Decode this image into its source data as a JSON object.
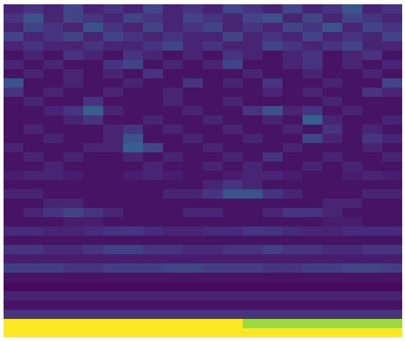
{
  "chart_data": {
    "type": "heatmap",
    "tick_labels": false,
    "zlim": [
      0,
      1
    ],
    "cells": [
      [
        0.1,
        0.15,
        0.1,
        0.2,
        0.1,
        0.15,
        0.1,
        0.2,
        0.1,
        0.15,
        0.1,
        0.2,
        0.15,
        0.1,
        0.2,
        0.1,
        0.15,
        0.25,
        0.1,
        0.15
      ],
      [
        0.15,
        0.25,
        0.1,
        0.2,
        0.15,
        0.1,
        0.2,
        0.15,
        0.1,
        0.2,
        0.15,
        0.1,
        0.2,
        0.25,
        0.1,
        0.2,
        0.1,
        0.2,
        0.15,
        0.1
      ],
      [
        0.1,
        0.2,
        0.15,
        0.1,
        0.25,
        0.15,
        0.1,
        0.2,
        0.1,
        0.15,
        0.2,
        0.1,
        0.15,
        0.1,
        0.2,
        0.15,
        0.25,
        0.1,
        0.2,
        0.15
      ],
      [
        0.2,
        0.1,
        0.15,
        0.2,
        0.1,
        0.2,
        0.15,
        0.1,
        0.15,
        0.1,
        0.1,
        0.2,
        0.1,
        0.15,
        0.1,
        0.2,
        0.1,
        0.15,
        0.1,
        0.2
      ],
      [
        0.1,
        0.15,
        0.1,
        0.1,
        0.15,
        0.1,
        0.1,
        0.15,
        0.2,
        0.1,
        0.15,
        0.1,
        0.1,
        0.2,
        0.15,
        0.1,
        0.15,
        0.2,
        0.1,
        0.1
      ],
      [
        0.05,
        0.1,
        0.05,
        0.15,
        0.1,
        0.05,
        0.15,
        0.1,
        0.05,
        0.1,
        0.05,
        0.15,
        0.1,
        0.05,
        0.1,
        0.15,
        0.05,
        0.1,
        0.15,
        0.05
      ],
      [
        0.1,
        0.05,
        0.1,
        0.05,
        0.05,
        0.15,
        0.2,
        0.05,
        0.1,
        0.05,
        0.1,
        0.2,
        0.05,
        0.05,
        0.1,
        0.15,
        0.05,
        0.1,
        0.05,
        0.1
      ],
      [
        0.05,
        0.1,
        0.05,
        0.1,
        0.05,
        0.1,
        0.05,
        0.15,
        0.05,
        0.05,
        0.05,
        0.05,
        0.1,
        0.05,
        0.05,
        0.1,
        0.05,
        0.05,
        0.1,
        0.05
      ],
      [
        0.25,
        0.05,
        0.05,
        0.1,
        0.05,
        0.05,
        0.1,
        0.05,
        0.05,
        0.15,
        0.05,
        0.1,
        0.05,
        0.15,
        0.05,
        0.05,
        0.1,
        0.05,
        0.05,
        0.2
      ],
      [
        0.15,
        0.05,
        0.1,
        0.05,
        0.05,
        0.1,
        0.05,
        0.05,
        0.1,
        0.05,
        0.05,
        0.05,
        0.05,
        0.1,
        0.05,
        0.1,
        0.05,
        0.05,
        0.15,
        0.1
      ],
      [
        0.05,
        0.1,
        0.05,
        0.05,
        0.15,
        0.05,
        0.05,
        0.05,
        0.1,
        0.05,
        0.05,
        0.1,
        0.05,
        0.05,
        0.05,
        0.05,
        0.1,
        0.05,
        0.05,
        0.05
      ],
      [
        0.05,
        0.05,
        0.1,
        0.15,
        0.3,
        0.1,
        0.05,
        0.05,
        0.05,
        0.1,
        0.05,
        0.05,
        0.15,
        0.25,
        0.1,
        0.15,
        0.05,
        0.1,
        0.05,
        0.05
      ],
      [
        0.05,
        0.05,
        0.05,
        0.1,
        0.15,
        0.05,
        0.05,
        0.1,
        0.05,
        0.05,
        0.1,
        0.05,
        0.05,
        0.1,
        0.05,
        0.3,
        0.1,
        0.05,
        0.05,
        0.1
      ],
      [
        0.05,
        0.1,
        0.05,
        0.05,
        0.05,
        0.1,
        0.15,
        0.05,
        0.1,
        0.05,
        0.05,
        0.1,
        0.05,
        0.05,
        0.1,
        0.05,
        0.15,
        0.05,
        0.1,
        0.05
      ],
      [
        0.05,
        0.05,
        0.1,
        0.05,
        0.05,
        0.1,
        0.25,
        0.05,
        0.05,
        0.1,
        0.05,
        0.05,
        0.1,
        0.05,
        0.05,
        0.2,
        0.1,
        0.05,
        0.15,
        0.1
      ],
      [
        0.1,
        0.05,
        0.05,
        0.05,
        0.1,
        0.1,
        0.3,
        0.2,
        0.05,
        0.05,
        0.1,
        0.05,
        0.05,
        0.05,
        0.1,
        0.05,
        0.05,
        0.05,
        0.1,
        0.05
      ],
      [
        0.05,
        0.1,
        0.05,
        0.1,
        0.05,
        0.05,
        0.1,
        0.05,
        0.1,
        0.05,
        0.05,
        0.1,
        0.05,
        0.15,
        0.05,
        0.05,
        0.1,
        0.05,
        0.05,
        0.1
      ],
      [
        0.05,
        0.05,
        0.1,
        0.05,
        0.05,
        0.05,
        0.05,
        0.1,
        0.05,
        0.05,
        0.1,
        0.05,
        0.1,
        0.05,
        0.05,
        0.1,
        0.05,
        0.1,
        0.05,
        0.05
      ],
      [
        0.08,
        0.1,
        0.1,
        0.08,
        0.05,
        0.05,
        0.08,
        0.1,
        0.08,
        0.05,
        0.05,
        0.08,
        0.1,
        0.1,
        0.08,
        0.05,
        0.05,
        0.08,
        0.1,
        0.08
      ],
      [
        0.05,
        0.05,
        0.05,
        0.05,
        0.05,
        0.05,
        0.05,
        0.05,
        0.05,
        0.05,
        0.1,
        0.15,
        0.1,
        0.05,
        0.05,
        0.05,
        0.05,
        0.05,
        0.05,
        0.05
      ],
      [
        0.1,
        0.1,
        0.05,
        0.05,
        0.05,
        0.05,
        0.05,
        0.05,
        0.1,
        0.1,
        0.15,
        0.25,
        0.25,
        0.15,
        0.1,
        0.05,
        0.05,
        0.05,
        0.1,
        0.1
      ],
      [
        0.05,
        0.05,
        0.1,
        0.1,
        0.05,
        0.05,
        0.05,
        0.05,
        0.05,
        0.05,
        0.05,
        0.05,
        0.05,
        0.05,
        0.05,
        0.05,
        0.1,
        0.1,
        0.05,
        0.05
      ],
      [
        0.05,
        0.1,
        0.15,
        0.2,
        0.15,
        0.1,
        0.05,
        0.05,
        0.05,
        0.1,
        0.1,
        0.05,
        0.05,
        0.1,
        0.15,
        0.15,
        0.1,
        0.05,
        0.05,
        0.05
      ],
      [
        0.05,
        0.05,
        0.05,
        0.08,
        0.08,
        0.05,
        0.05,
        0.05,
        0.05,
        0.05,
        0.05,
        0.05,
        0.05,
        0.05,
        0.05,
        0.05,
        0.08,
        0.08,
        0.05,
        0.05
      ],
      [
        0.12,
        0.12,
        0.1,
        0.1,
        0.12,
        0.15,
        0.15,
        0.12,
        0.1,
        0.1,
        0.12,
        0.12,
        0.15,
        0.15,
        0.12,
        0.1,
        0.1,
        0.12,
        0.12,
        0.12
      ],
      [
        0.05,
        0.05,
        0.05,
        0.05,
        0.05,
        0.05,
        0.05,
        0.05,
        0.05,
        0.05,
        0.05,
        0.05,
        0.05,
        0.05,
        0.05,
        0.05,
        0.05,
        0.05,
        0.05,
        0.05
      ],
      [
        0.15,
        0.15,
        0.12,
        0.12,
        0.15,
        0.18,
        0.18,
        0.15,
        0.15,
        0.12,
        0.12,
        0.15,
        0.15,
        0.18,
        0.15,
        0.15,
        0.12,
        0.12,
        0.15,
        0.15
      ],
      [
        0.08,
        0.08,
        0.08,
        0.08,
        0.08,
        0.08,
        0.08,
        0.08,
        0.08,
        0.08,
        0.08,
        0.08,
        0.08,
        0.08,
        0.08,
        0.08,
        0.08,
        0.08,
        0.08,
        0.08
      ],
      [
        0.18,
        0.18,
        0.18,
        0.15,
        0.15,
        0.18,
        0.18,
        0.18,
        0.2,
        0.2,
        0.18,
        0.18,
        0.18,
        0.15,
        0.15,
        0.18,
        0.18,
        0.2,
        0.2,
        0.18
      ],
      [
        0.05,
        0.05,
        0.05,
        0.05,
        0.05,
        0.05,
        0.05,
        0.05,
        0.05,
        0.05,
        0.05,
        0.05,
        0.05,
        0.05,
        0.05,
        0.05,
        0.05,
        0.05,
        0.05,
        0.05
      ],
      [
        0.03,
        0.03,
        0.03,
        0.03,
        0.03,
        0.03,
        0.03,
        0.03,
        0.03,
        0.03,
        0.03,
        0.03,
        0.03,
        0.03,
        0.03,
        0.03,
        0.03,
        0.03,
        0.03,
        0.03
      ],
      [
        0.1,
        0.1,
        0.1,
        0.1,
        0.1,
        0.1,
        0.1,
        0.1,
        0.1,
        0.1,
        0.1,
        0.1,
        0.1,
        0.1,
        0.1,
        0.1,
        0.1,
        0.1,
        0.1,
        0.1
      ],
      [
        0.05,
        0.05,
        0.05,
        0.05,
        0.05,
        0.05,
        0.05,
        0.05,
        0.05,
        0.05,
        0.05,
        0.05,
        0.05,
        0.05,
        0.05,
        0.05,
        0.05,
        0.05,
        0.05,
        0.05
      ],
      [
        0.15,
        0.15,
        0.15,
        0.15,
        0.15,
        0.15,
        0.15,
        0.15,
        0.15,
        0.15,
        0.15,
        0.15,
        0.15,
        0.15,
        0.15,
        0.15,
        0.15,
        0.15,
        0.15,
        0.15
      ],
      [
        1,
        1,
        1,
        1,
        1,
        1,
        1,
        1,
        1,
        1,
        1,
        1,
        0.85,
        0.85,
        0.85,
        0.85,
        0.85,
        0.85,
        0.85,
        0.85
      ],
      [
        1,
        1,
        1,
        1,
        1,
        1,
        1,
        1,
        1,
        1,
        1,
        1,
        1,
        1,
        1,
        1,
        1,
        1,
        1,
        1
      ]
    ]
  }
}
